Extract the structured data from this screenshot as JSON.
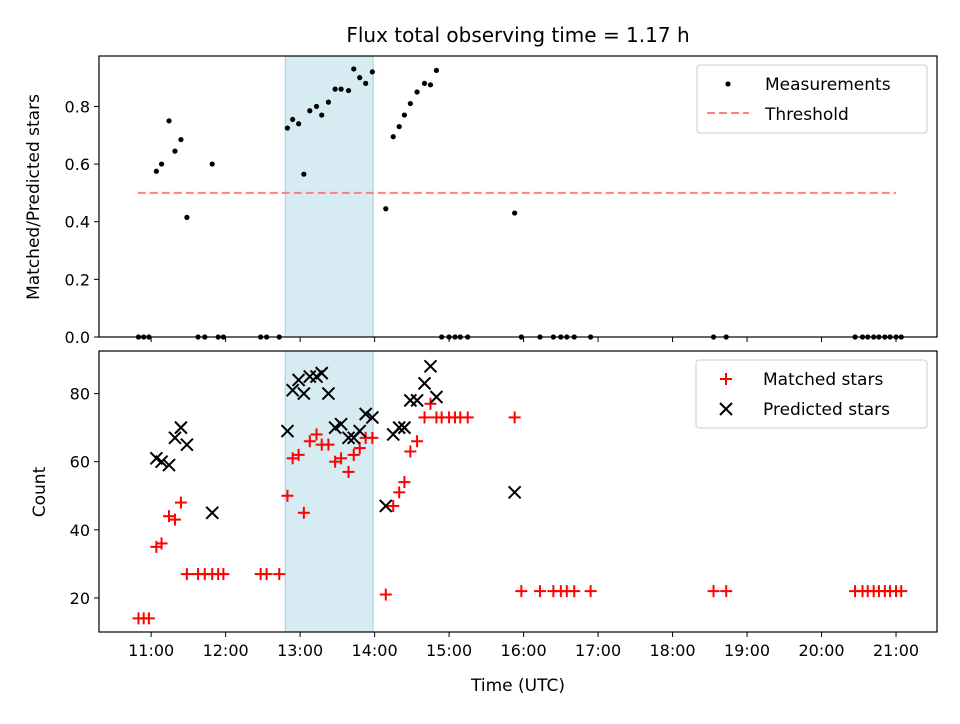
{
  "chart_data": [
    {
      "type": "scatter",
      "title": "Flux total observing time = 1.17 h",
      "xlabel": "",
      "ylabel": "Matched/Predicted stars",
      "xlim_hours": [
        10.3,
        21.55
      ],
      "ylim": [
        0,
        0.975
      ],
      "yticks": [
        0.0,
        0.2,
        0.4,
        0.6,
        0.8
      ],
      "ytick_labels": [
        "0.0",
        "0.2",
        "0.4",
        "0.6",
        "0.8"
      ],
      "xtick_hours": [
        11,
        12,
        13,
        14,
        15,
        16,
        17,
        18,
        19,
        20,
        21
      ],
      "highlight_span_hours": [
        12.8,
        13.98
      ],
      "legend_position": "upper right",
      "threshold": {
        "name": "Threshold",
        "value": 0.5,
        "x_range_hours": [
          10.82,
          21.0
        ],
        "color": "#ff7f7f"
      },
      "series": [
        {
          "name": "Measurements",
          "color": "#000000",
          "marker": "dot",
          "x_hours": [
            10.83,
            10.9,
            10.97,
            11.07,
            11.14,
            11.24,
            11.32,
            11.4,
            11.48,
            11.63,
            11.72,
            11.82,
            11.9,
            11.97,
            12.47,
            12.55,
            12.72,
            12.83,
            12.9,
            12.98,
            13.05,
            13.13,
            13.22,
            13.29,
            13.38,
            13.47,
            13.55,
            13.65,
            13.72,
            13.8,
            13.88,
            13.97,
            14.15,
            14.25,
            14.33,
            14.4,
            14.48,
            14.57,
            14.67,
            14.75,
            14.83,
            14.9,
            15.0,
            15.08,
            15.15,
            15.25,
            15.88,
            15.97,
            16.22,
            16.4,
            16.5,
            16.58,
            16.68,
            16.9,
            18.55,
            18.72,
            20.45,
            20.55,
            20.62,
            20.7,
            20.77,
            20.85,
            20.92,
            21.0,
            21.07
          ],
          "y": [
            0,
            0,
            0,
            0.575,
            0.6,
            0.75,
            0.645,
            0.685,
            0.415,
            0,
            0,
            0.6,
            0,
            0,
            0,
            0,
            0,
            0.725,
            0.755,
            0.74,
            0.565,
            0.785,
            0.8,
            0.77,
            0.815,
            0.86,
            0.86,
            0.855,
            0.93,
            0.9,
            0.88,
            0.92,
            0.445,
            0.695,
            0.73,
            0.77,
            0.81,
            0.85,
            0.88,
            0.875,
            0.925,
            0,
            0,
            0,
            0,
            0,
            0.43,
            0,
            0,
            0,
            0,
            0,
            0,
            0,
            0,
            0,
            0,
            0,
            0,
            0,
            0,
            0,
            0,
            0,
            0
          ]
        }
      ]
    },
    {
      "type": "scatter",
      "title": "",
      "xlabel": "Time (UTC)",
      "ylabel": "Count",
      "xlim_hours": [
        10.3,
        21.55
      ],
      "ylim": [
        10,
        92.5
      ],
      "yticks": [
        20,
        40,
        60,
        80
      ],
      "ytick_labels": [
        "20",
        "40",
        "60",
        "80"
      ],
      "xtick_hours": [
        11,
        12,
        13,
        14,
        15,
        16,
        17,
        18,
        19,
        20,
        21
      ],
      "xtick_labels": [
        "11:00",
        "12:00",
        "13:00",
        "14:00",
        "15:00",
        "16:00",
        "17:00",
        "18:00",
        "19:00",
        "20:00",
        "21:00"
      ],
      "highlight_span_hours": [
        12.8,
        13.98
      ],
      "legend_position": "upper right",
      "series": [
        {
          "name": "Matched stars",
          "color": "#ff0000",
          "marker": "plus",
          "x_hours": [
            10.83,
            10.9,
            10.97,
            11.07,
            11.14,
            11.24,
            11.32,
            11.4,
            11.48,
            11.63,
            11.72,
            11.82,
            11.9,
            11.97,
            12.47,
            12.55,
            12.72,
            12.83,
            12.9,
            12.98,
            13.05,
            13.13,
            13.22,
            13.29,
            13.38,
            13.47,
            13.55,
            13.65,
            13.72,
            13.8,
            13.88,
            13.97,
            14.15,
            14.25,
            14.33,
            14.4,
            14.48,
            14.57,
            14.67,
            14.75,
            14.83,
            14.9,
            15.0,
            15.08,
            15.15,
            15.25,
            15.88,
            15.97,
            16.22,
            16.4,
            16.5,
            16.58,
            16.68,
            16.9,
            18.55,
            18.72,
            20.45,
            20.55,
            20.62,
            20.7,
            20.77,
            20.85,
            20.92,
            21.0,
            21.07
          ],
          "y": [
            14,
            14,
            14,
            35,
            36,
            44,
            43,
            48,
            27,
            27,
            27,
            27,
            27,
            27,
            27,
            27,
            27,
            50,
            61,
            62,
            45,
            66,
            68,
            65,
            65,
            60,
            61,
            57,
            62,
            64,
            67,
            67,
            21,
            47,
            51,
            54,
            63,
            66,
            73,
            77,
            73,
            73,
            73,
            73,
            73,
            73,
            73,
            22,
            22,
            22,
            22,
            22,
            22,
            22,
            22,
            22,
            22,
            22,
            22,
            22,
            22,
            22,
            22,
            22,
            22
          ]
        },
        {
          "name": "Predicted stars",
          "color": "#000000",
          "marker": "x",
          "x_hours": [
            11.07,
            11.14,
            11.24,
            11.32,
            11.4,
            11.48,
            11.82,
            12.83,
            12.9,
            12.98,
            13.05,
            13.13,
            13.22,
            13.29,
            13.38,
            13.47,
            13.55,
            13.65,
            13.72,
            13.8,
            13.88,
            13.97,
            14.15,
            14.25,
            14.33,
            14.4,
            14.48,
            14.57,
            14.67,
            14.75,
            14.83,
            15.88
          ],
          "y": [
            61,
            60,
            59,
            67,
            70,
            65,
            45,
            69,
            81,
            84,
            80,
            85,
            85,
            86,
            80,
            70,
            71,
            67,
            67,
            69,
            74,
            73,
            47,
            68,
            70,
            70,
            78,
            78,
            83,
            88,
            79,
            51
          ]
        }
      ]
    }
  ]
}
